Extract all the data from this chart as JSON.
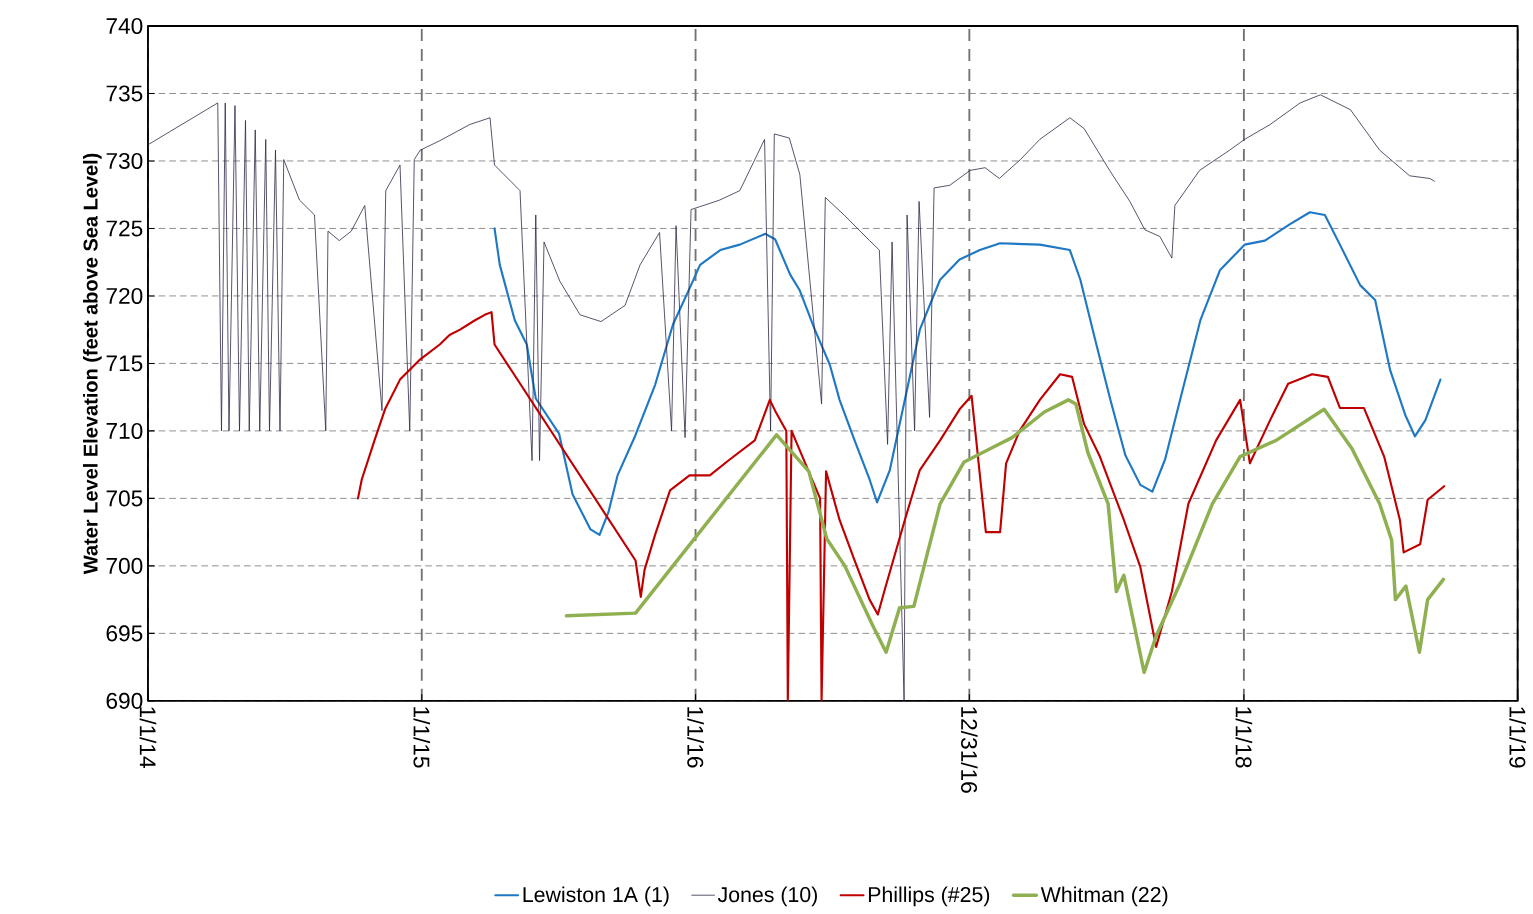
{
  "chart_data": {
    "type": "line",
    "ylabel": "Water Level Elevation (feet above Sea Level)",
    "xlim": [
      "2014-01-01",
      "2019-01-01"
    ],
    "ylim": [
      690,
      740
    ],
    "xticks": [
      {
        "value": "2014-01-01",
        "label": "1/1/14"
      },
      {
        "value": "2015-01-01",
        "label": "1/1/15"
      },
      {
        "value": "2016-01-01",
        "label": "1/1/16"
      },
      {
        "value": "2016-12-31",
        "label": "12/31/16"
      },
      {
        "value": "2018-01-01",
        "label": "1/1/18"
      },
      {
        "value": "2019-01-01",
        "label": "1/1/19"
      }
    ],
    "yticks": [
      690,
      695,
      700,
      705,
      710,
      715,
      720,
      725,
      730,
      735,
      740
    ],
    "grid": true,
    "legend": "bottom",
    "line_style": "solid",
    "series": [
      {
        "name": "Lewiston 1A (1)",
        "color": "#1f78c4",
        "x": [
          "2015-04-08",
          "2015-04-15",
          "2015-05-05",
          "2015-05-21",
          "2015-06-02",
          "2015-07-03",
          "2015-07-21",
          "2015-08-14",
          "2015-08-26",
          "2015-09-07",
          "2015-09-19",
          "2015-10-13",
          "2015-11-08",
          "2015-12-02",
          "2015-12-26",
          "2016-01-07",
          "2016-02-03",
          "2016-02-29",
          "2016-04-03",
          "2016-04-16",
          "2016-05-06",
          "2016-05-19",
          "2016-06-08",
          "2016-06-28",
          "2016-07-11",
          "2016-07-31",
          "2016-08-20",
          "2016-08-30",
          "2016-09-16",
          "2016-10-06",
          "2016-10-26",
          "2016-11-22",
          "2016-12-18",
          "2017-01-14",
          "2017-02-10",
          "2017-04-04",
          "2017-05-14",
          "2017-05-28",
          "2017-06-17",
          "2017-07-07",
          "2017-07-27",
          "2017-08-16",
          "2017-09-01",
          "2017-09-18",
          "2017-10-08",
          "2017-11-04",
          "2017-11-30",
          "2018-01-02",
          "2018-01-29",
          "2018-03-03",
          "2018-03-30",
          "2018-04-19",
          "2018-05-09",
          "2018-06-05",
          "2018-06-25",
          "2018-07-15",
          "2018-08-04",
          "2018-08-17",
          "2018-08-31",
          "2018-09-20"
        ],
        "values": [
          725,
          722.3,
          718.2,
          716.4,
          712.4,
          709.8,
          705.3,
          702.7,
          702.3,
          704,
          706.7,
          709.7,
          713.4,
          717.9,
          720.8,
          722.3,
          723.4,
          723.8,
          724.6,
          724.2,
          721.6,
          720.4,
          717.5,
          714.9,
          712.3,
          709.3,
          706.4,
          704.7,
          707.1,
          712.3,
          717.5,
          721.2,
          722.7,
          723.4,
          723.9,
          723.8,
          723.4,
          721.2,
          716.7,
          712.3,
          708.2,
          706,
          705.5,
          707.9,
          712.3,
          718.2,
          721.9,
          723.8,
          724.1,
          725.3,
          726.2,
          726,
          723.8,
          720.8,
          719.7,
          714.5,
          711.2,
          709.6,
          710.8,
          713.8
        ]
      },
      {
        "name": "Jones (10)",
        "color": "#2f2846",
        "x": [
          "2014-01-01",
          "2014-04-04",
          "2014-04-09",
          "2014-04-14",
          "2014-04-19",
          "2014-04-27",
          "2014-05-03",
          "2014-05-11",
          "2014-05-16",
          "2014-05-24",
          "2014-05-30",
          "2014-06-07",
          "2014-06-12",
          "2014-06-20",
          "2014-06-26",
          "2014-07-01",
          "2014-07-22",
          "2014-08-11",
          "2014-08-26",
          "2014-08-29",
          "2014-09-13",
          "2014-09-29",
          "2014-10-17",
          "2014-11-09",
          "2014-11-14",
          "2014-12-03",
          "2014-12-16",
          "2014-12-22",
          "2014-12-30",
          "2015-01-25",
          "2015-03-06",
          "2015-04-02",
          "2015-04-08",
          "2015-05-12",
          "2015-05-28",
          "2015-06-02",
          "2015-06-07",
          "2015-06-13",
          "2015-07-04",
          "2015-07-31",
          "2015-08-28",
          "2015-09-29",
          "2015-10-19",
          "2015-11-14",
          "2015-11-30",
          "2015-12-06",
          "2015-12-18",
          "2015-12-26",
          "2016-01-06",
          "2016-02-02",
          "2016-02-29",
          "2016-04-02",
          "2016-04-10",
          "2016-04-15",
          "2016-05-05",
          "2016-05-19",
          "2016-06-17",
          "2016-06-22",
          "2016-07-17",
          "2016-08-20",
          "2016-09-02",
          "2016-09-13",
          "2016-09-19",
          "2016-10-05",
          "2016-10-09",
          "2016-10-19",
          "2016-10-25",
          "2016-11-08",
          "2016-11-14",
          "2016-12-05",
          "2017-01-01",
          "2017-01-21",
          "2017-02-09",
          "2017-03-09",
          "2017-04-04",
          "2017-05-14",
          "2017-06-02",
          "2017-07-06",
          "2017-08-02",
          "2017-08-22",
          "2017-09-11",
          "2017-09-27",
          "2017-10-01",
          "2017-11-03",
          "2017-12-13",
          "2018-01-02",
          "2018-02-05",
          "2018-03-17",
          "2018-04-13",
          "2018-05-23",
          "2018-07-01",
          "2018-08-10",
          "2018-09-06",
          "2018-09-12"
        ],
        "values": [
          731.2,
          734.3,
          710,
          734.3,
          710,
          734.1,
          710,
          733,
          710,
          732.3,
          710,
          731.6,
          710,
          730.8,
          710,
          730.1,
          727.1,
          726,
          710,
          724.8,
          724.1,
          724.8,
          726.7,
          711.5,
          727.8,
          729.7,
          710,
          730.1,
          730.8,
          731.5,
          732.7,
          733.2,
          729.7,
          727.8,
          707.8,
          726,
          707.8,
          724,
          721.1,
          718.6,
          718.1,
          719.3,
          722.3,
          724.7,
          710,
          725.2,
          709.5,
          726.4,
          726.6,
          727.1,
          727.8,
          731.6,
          710,
          732,
          731.7,
          729,
          712,
          727.3,
          726,
          724.1,
          723.4,
          709,
          724,
          690,
          726,
          710,
          727,
          711,
          728,
          728.2,
          729.3,
          729.5,
          728.7,
          730.1,
          731.6,
          733.2,
          732.4,
          729.3,
          727,
          724.9,
          724.4,
          722.8,
          726.7,
          729.3,
          730.8,
          731.6,
          732.7,
          734.3,
          734.9,
          733.8,
          730.8,
          728.9,
          728.7,
          728.5
        ]
      },
      {
        "name": "Phillips (#25)",
        "color": "#c00000",
        "x": [
          "2014-10-08",
          "2014-10-13",
          "2014-10-30",
          "2014-11-13",
          "2014-12-03",
          "2014-12-30",
          "2015-01-25",
          "2015-02-07",
          "2015-02-21",
          "2015-03-13",
          "2015-03-26",
          "2015-04-04",
          "2015-04-08",
          "2015-10-13",
          "2015-10-20",
          "2015-10-25",
          "2015-11-08",
          "2015-11-28",
          "2015-12-24",
          "2016-01-20",
          "2016-02-16",
          "2016-03-20",
          "2016-04-09",
          "2016-04-16",
          "2016-05-01",
          "2016-05-03",
          "2016-05-08",
          "2016-06-15",
          "2016-06-17",
          "2016-06-23",
          "2016-07-11",
          "2016-07-31",
          "2016-08-20",
          "2016-08-31",
          "2016-09-09",
          "2016-10-06",
          "2016-10-26",
          "2016-11-22",
          "2016-12-18",
          "2017-01-03",
          "2017-01-22",
          "2017-02-10",
          "2017-02-18",
          "2017-03-08",
          "2017-04-04",
          "2017-05-01",
          "2017-05-17",
          "2017-06-02",
          "2017-06-23",
          "2017-07-25",
          "2017-08-16",
          "2017-09-06",
          "2017-09-27",
          "2017-10-19",
          "2017-11-25",
          "2017-12-27",
          "2018-01-09",
          "2018-02-05",
          "2018-03-01",
          "2018-04-02",
          "2018-04-23",
          "2018-05-09",
          "2018-06-10",
          "2018-07-07",
          "2018-07-28",
          "2018-08-02",
          "2018-08-24",
          "2018-09-03",
          "2018-09-25"
        ],
        "values": [
          705,
          706.4,
          709.3,
          711.6,
          713.8,
          715.3,
          716.4,
          717.1,
          717.5,
          718.2,
          718.6,
          718.8,
          716.4,
          700.4,
          697.7,
          699.7,
          702.3,
          705.6,
          706.7,
          706.7,
          707.9,
          709.3,
          712.3,
          711.5,
          710,
          690,
          710,
          705,
          690,
          707,
          703.4,
          700.4,
          697.5,
          696.4,
          698.2,
          703.4,
          707.1,
          709.3,
          711.6,
          712.6,
          702.5,
          702.5,
          707.6,
          710,
          712.3,
          714.2,
          714,
          710.5,
          708.1,
          703.4,
          699.9,
          694,
          698.1,
          704.6,
          709.3,
          712.3,
          707.6,
          710.8,
          713.5,
          714.2,
          714,
          711.7,
          711.7,
          708.1,
          703.4,
          701,
          701.6,
          704.9,
          705.9
        ]
      },
      {
        "name": "Whitman (22)",
        "color": "#8fb050",
        "x": [
          "2015-07-13",
          "2015-10-13",
          "2016-04-18",
          "2016-05-31",
          "2016-06-24",
          "2016-07-18",
          "2016-08-24",
          "2016-09-11",
          "2016-09-29",
          "2016-10-18",
          "2016-11-22",
          "2016-12-24",
          "2017-01-25",
          "2017-02-26",
          "2017-04-10",
          "2017-05-12",
          "2017-05-22",
          "2017-06-07",
          "2017-07-04",
          "2017-07-15",
          "2017-07-25",
          "2017-08-21",
          "2017-09-06",
          "2017-10-08",
          "2017-11-20",
          "2017-12-27",
          "2018-02-13",
          "2018-04-18",
          "2018-05-25",
          "2018-07-01",
          "2018-07-17",
          "2018-07-22",
          "2018-08-05",
          "2018-08-23",
          "2018-09-03",
          "2018-09-24"
        ],
        "values": [
          696.3,
          696.5,
          709.7,
          707,
          702,
          700,
          695.6,
          693.6,
          696.9,
          697,
          704.6,
          707.7,
          708.6,
          709.5,
          711.4,
          712.3,
          712,
          708.4,
          704.6,
          698.1,
          699.3,
          692.1,
          694.8,
          698.7,
          704.6,
          708.1,
          709.3,
          711.6,
          708.7,
          704.6,
          701.9,
          697.5,
          698.5,
          693.6,
          697.5,
          699
        ]
      }
    ]
  }
}
